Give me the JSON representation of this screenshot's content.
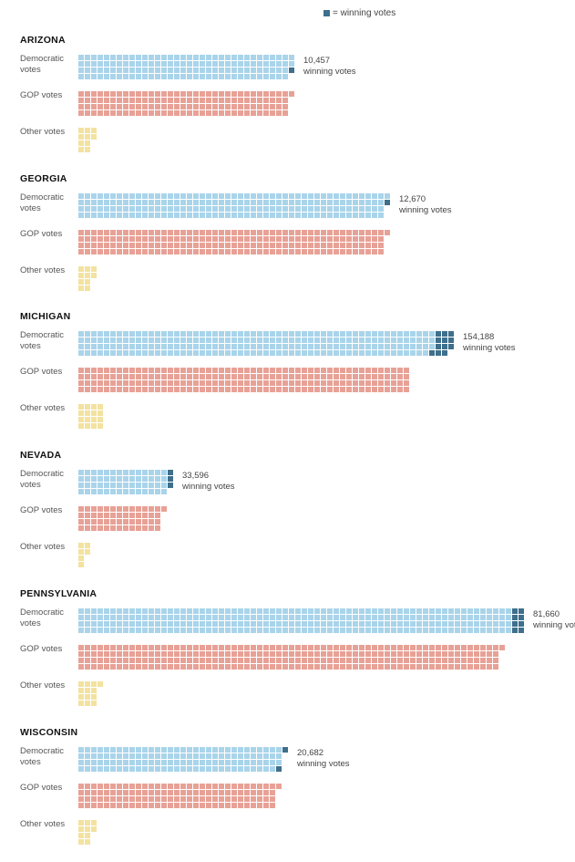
{
  "legend": {
    "label": "= winning votes",
    "color": "#3e6f8c"
  },
  "colors": {
    "dem": "#a9d4ea",
    "gop": "#e8a196",
    "other": "#f3e2a0",
    "winning": "#3e6f8c"
  },
  "labels": {
    "dem": "Democratic\nvotes",
    "gop": "GOP votes",
    "other": "Other votes",
    "winning": "winning votes"
  },
  "chart_data": {
    "type": "waffle",
    "note": "Each square represents an equal number of votes; squares drawn 4 rows per column.",
    "states": [
      {
        "name": "ARIZONA",
        "dem_squares": 134,
        "winning_squares": 1,
        "gop_squares": 133,
        "other_squares": 10,
        "winning_votes": "10,457"
      },
      {
        "name": "GEORGIA",
        "dem_squares": 193,
        "winning_squares": 1,
        "gop_squares": 193,
        "other_squares": 10,
        "winning_votes": "12,670"
      },
      {
        "name": "MICHIGAN",
        "dem_squares": 223,
        "winning_squares": 12,
        "gop_squares": 208,
        "other_squares": 16,
        "winning_votes": "154,188"
      },
      {
        "name": "NEVADA",
        "dem_squares": 56,
        "winning_squares": 3,
        "gop_squares": 53,
        "other_squares": 6,
        "winning_votes": "33,596"
      },
      {
        "name": "PENNSYLVANIA",
        "dem_squares": 272,
        "winning_squares": 8,
        "gop_squares": 265,
        "other_squares": 13,
        "winning_votes": "81,660"
      },
      {
        "name": "WISCONSIN",
        "dem_squares": 127,
        "winning_squares": 2,
        "gop_squares": 125,
        "other_squares": 10,
        "winning_votes": "20,682"
      }
    ]
  }
}
